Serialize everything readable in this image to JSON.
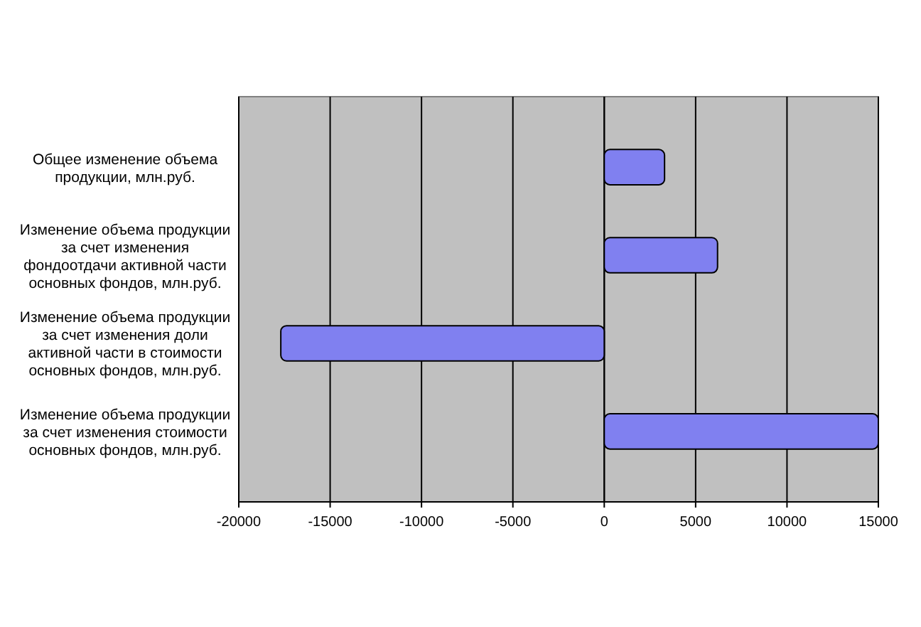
{
  "chart_data": {
    "type": "bar",
    "orientation": "horizontal",
    "categories": [
      "Общее изменение объема продукции, млн.руб.",
      "Изменение объема продукции за счет изменения фондоотдачи активной части основных фондов, млн.руб.",
      "Изменение объема продукции за счет изменения доли активной части в стоимости основных фондов, млн.руб.",
      "Изменение объема продукции за счет изменения стоимости основных фондов, млн.руб."
    ],
    "values": [
      3300,
      6200,
      -17700,
      15000
    ],
    "color": "#8080f0",
    "xlim": [
      -20000,
      15000
    ],
    "xticks": [
      -20000,
      -15000,
      -10000,
      -5000,
      0,
      5000,
      10000,
      15000
    ],
    "grid": "x"
  }
}
